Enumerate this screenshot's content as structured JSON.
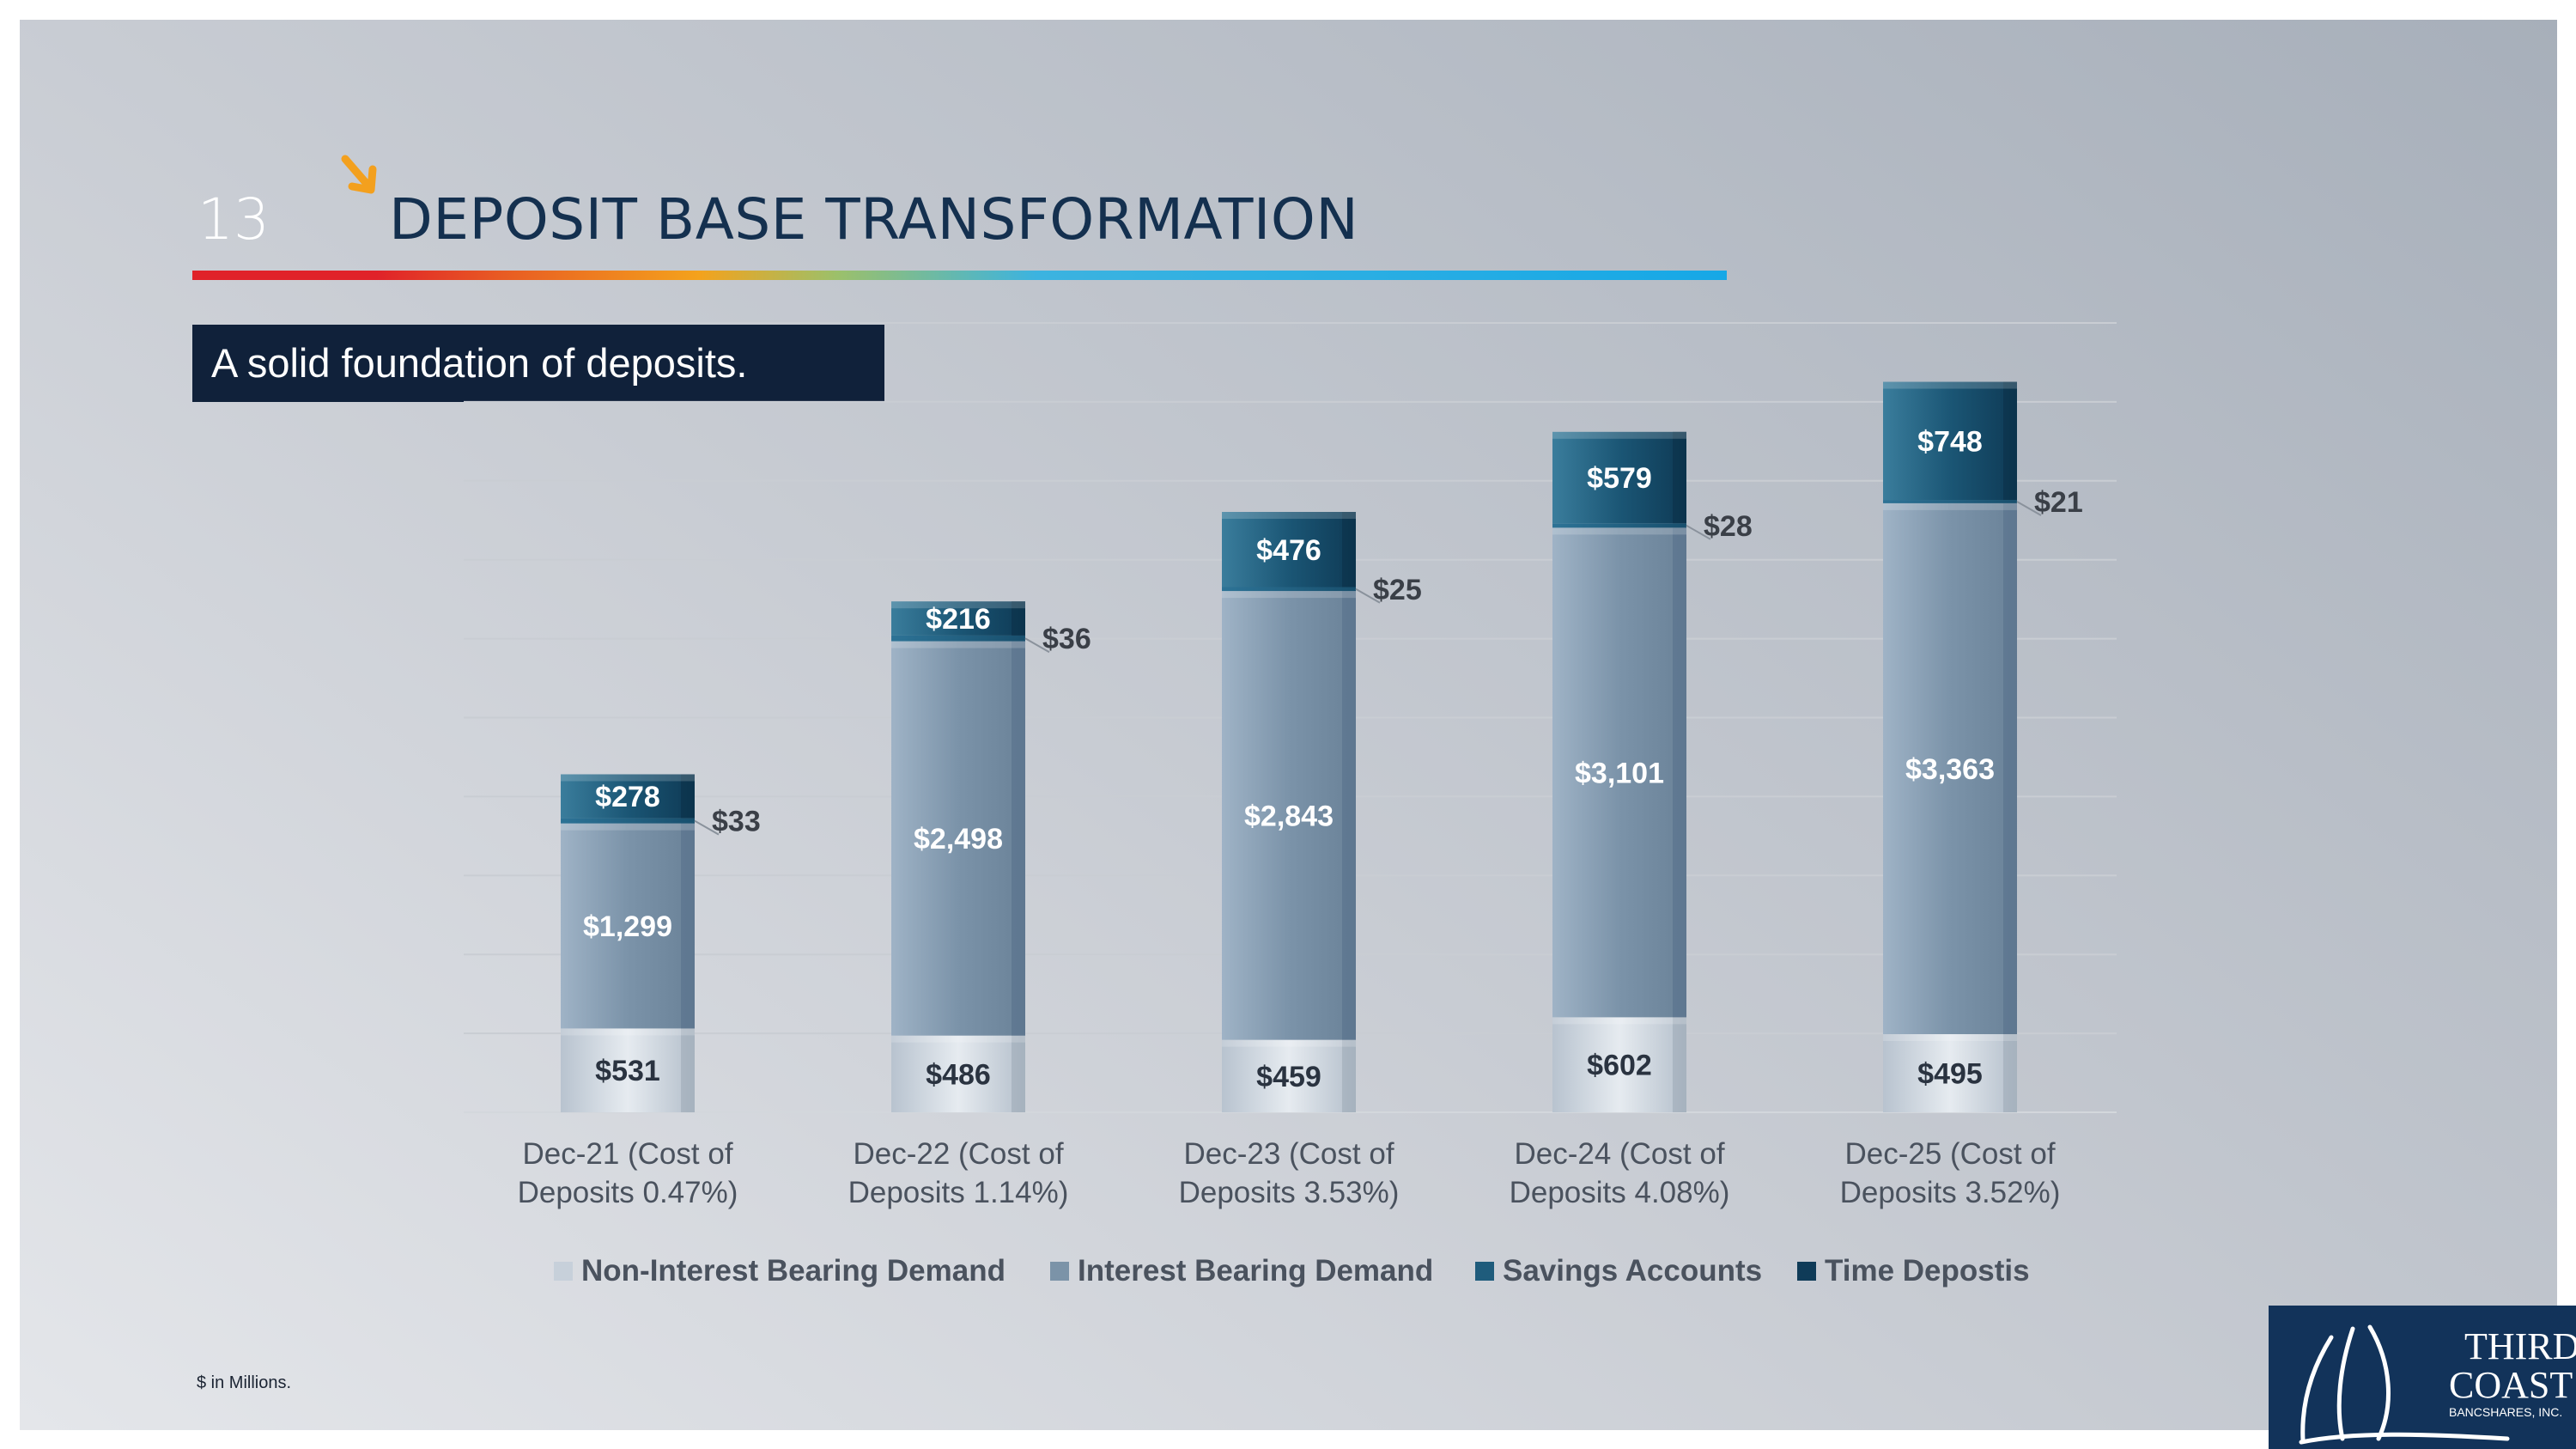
{
  "page": {
    "number": "13",
    "title": "DEPOSIT BASE TRANSFORMATION",
    "subtitle": "A solid foundation of deposits.",
    "footnote": "$ in Millions."
  },
  "logo": {
    "line1": "THIRD",
    "line2": "COAST",
    "line3": "BANCSHARES, INC."
  },
  "icons": {
    "arrow": "arrow-down-right-icon",
    "logo_mark": "sail-logo-icon"
  },
  "colors": {
    "title": "#14304f",
    "subtitle_bg": "#10213a",
    "non_interest": "#c7d0da",
    "interest": "#7b93a8",
    "savings": "#1f5c7c",
    "time": "#0f3b58",
    "accent_arrow": "#f3a01e"
  },
  "chart_data": {
    "type": "bar",
    "stacked": true,
    "categories": [
      [
        "Dec-21 (Cost of",
        "Deposits 0.47%)"
      ],
      [
        "Dec-22 (Cost of",
        "Deposits 1.14%)"
      ],
      [
        "Dec-23 (Cost of",
        "Deposits 3.53%)"
      ],
      [
        "Dec-24 (Cost of",
        "Deposits 4.08%)"
      ],
      [
        "Dec-25 (Cost of",
        "Deposits 3.52%)"
      ]
    ],
    "series": [
      {
        "name": "Non-Interest Bearing Demand",
        "values": [
          531,
          486,
          459,
          602,
          495
        ],
        "labels": [
          "$531",
          "$486",
          "$459",
          "$602",
          "$495"
        ]
      },
      {
        "name": "Interest Bearing Demand",
        "values": [
          1299,
          2498,
          2843,
          3101,
          3363
        ],
        "labels": [
          "$1,299",
          "$2,498",
          "$2,843",
          "$3,101",
          "$3,363"
        ]
      },
      {
        "name": "Savings Accounts",
        "values": [
          33,
          36,
          25,
          28,
          21
        ],
        "labels": [
          "$33",
          "$36",
          "$25",
          "$28",
          "$21"
        ]
      },
      {
        "name": "Time Depostis",
        "values": [
          278,
          216,
          476,
          579,
          748
        ],
        "labels": [
          "$278",
          "$216",
          "$476",
          "$579",
          "$748"
        ]
      }
    ],
    "ylim": [
      0,
      5000
    ],
    "grid": true,
    "legend": "bottom",
    "xlabel": "",
    "ylabel": ""
  }
}
